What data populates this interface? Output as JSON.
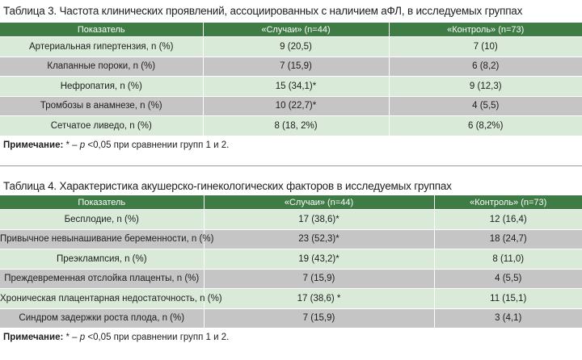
{
  "table3": {
    "title": "Таблица 3. Частота клинических проявлений, ассоциированных с наличием аФЛ, в исследуемых группах",
    "headers": [
      "Показатель",
      "«Случаи» (n=44)",
      "«Контроль» (n=73)"
    ],
    "rows": [
      [
        "Артериальная гипертензия, n (%)",
        "9 (20,5)",
        "7 (10)"
      ],
      [
        "Клапанные пороки, n (%)",
        "7 (15,9)",
        "6 (8,2)"
      ],
      [
        "Нефропатия, n (%)",
        "15 (34,1)*",
        "9 (12,3)"
      ],
      [
        "Тромбозы в анамнезе, n (%)",
        "10 (22,7)*",
        "4 (5,5)"
      ],
      [
        "Сетчатое ливедо, n (%)",
        "8 (18, 2%)",
        "6 (8,2%)"
      ]
    ],
    "note_label": "Примечание:",
    "note_text": " * – ",
    "note_p": "p",
    "note_rest": " <0,05 при сравнении групп 1 и 2."
  },
  "table4": {
    "title": "Таблица 4. Характеристика акушерско-гинекологических факторов в исследуемых группах",
    "headers": [
      "Показатель",
      "«Случаи» (n=44)",
      "«Контроль» (n=73)"
    ],
    "rows": [
      [
        "Бесплодие, n (%)",
        "17 (38,6)*",
        "12 (16,4)"
      ],
      [
        "Привычное невынашивание беременности, n (%)",
        "23 (52,3)*",
        "18 (24,7)"
      ],
      [
        "Преэклампсия, n (%)",
        "19 (43,2)*",
        "8 (11,0)"
      ],
      [
        "Преждевременная отслойка плаценты, n (%)",
        "7 (15,9)",
        "4 (5,5)"
      ],
      [
        "Хроническая плацентарная недостаточность, n (%)",
        "17 (38,6) *",
        "11 (15,1)"
      ],
      [
        "Синдром задержки роста плода, n (%)",
        "7 (15,9)",
        "3 (4,1)"
      ]
    ],
    "note_label": "Примечание:",
    "note_text": " * – ",
    "note_p": "p",
    "note_rest": " <0,05 при сравнении групп 1 и 2."
  },
  "colors": {
    "header_green": "#3f7b45",
    "row_light_green": "#d9ead8",
    "row_gray": "#c5c5c5"
  }
}
